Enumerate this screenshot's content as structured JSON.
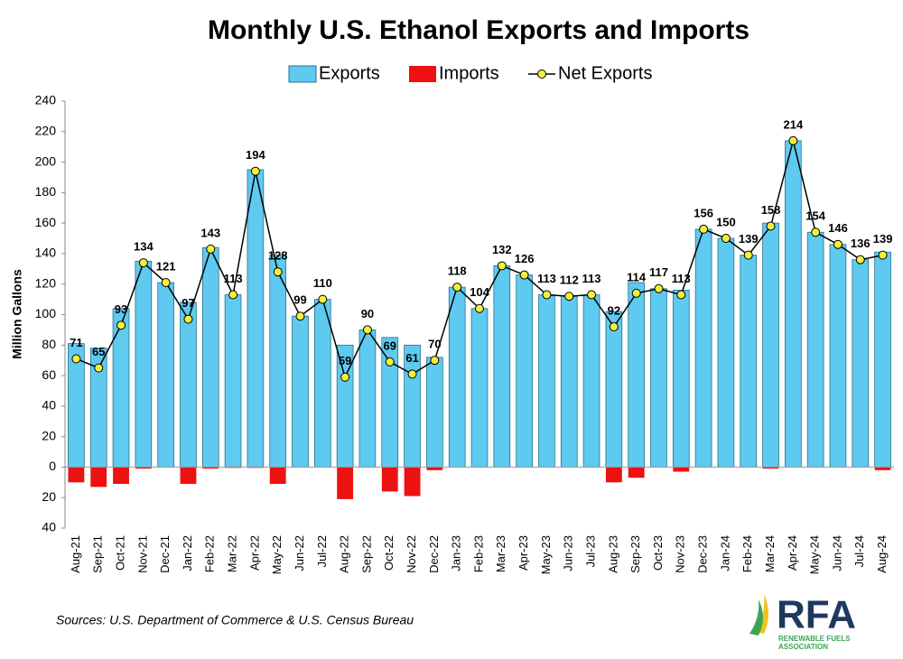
{
  "chart_data": {
    "type": "bar",
    "title": "Monthly U.S. Ethanol Exports and Imports",
    "y_label": "Million Gallons",
    "categories": [
      "Aug-21",
      "Sep-21",
      "Oct-21",
      "Nov-21",
      "Dec-21",
      "Jan-22",
      "Feb-22",
      "Mar-22",
      "Apr-22",
      "May-22",
      "Jun-22",
      "Jul-22",
      "Aug-22",
      "Sep-22",
      "Oct-22",
      "Nov-22",
      "Dec-22",
      "Jan-23",
      "Feb-23",
      "Mar-23",
      "Apr-23",
      "May-23",
      "Jun-23",
      "Jul-23",
      "Aug-23",
      "Sep-23",
      "Oct-23",
      "Nov-23",
      "Dec-23",
      "Jan-24",
      "Feb-24",
      "Mar-24",
      "Apr-24",
      "May-24",
      "Jun-24",
      "Jul-24",
      "Aug-24"
    ],
    "series": [
      {
        "name": "Exports",
        "type": "bar",
        "color": "#5ecaf0",
        "values": [
          81,
          78,
          104,
          135,
          121,
          108,
          144,
          113,
          195,
          139,
          99,
          110,
          80,
          90,
          85,
          80,
          72,
          118,
          104,
          132,
          126,
          113,
          112,
          113,
          102,
          121,
          117,
          116,
          156,
          150,
          139,
          160,
          214,
          154,
          146,
          136,
          141
        ]
      },
      {
        "name": "Imports",
        "type": "bar",
        "color": "#ee1111",
        "values": [
          -10,
          -13,
          -11,
          -1,
          0,
          -11,
          -1,
          -0.5,
          -0.5,
          -11,
          0,
          0,
          -21,
          0,
          -16,
          -19,
          -2,
          0,
          0,
          0,
          0,
          0,
          0,
          0,
          -10,
          -7,
          0,
          -3,
          0,
          0,
          0,
          -1,
          0,
          0,
          0,
          0,
          -2
        ]
      },
      {
        "name": "Net Exports",
        "type": "line",
        "color": "#000000",
        "marker_color": "#f5ef3c",
        "values": [
          71,
          65,
          93,
          134,
          121,
          97,
          143,
          113,
          194,
          128,
          99,
          110,
          59,
          90,
          69,
          61,
          70,
          118,
          104,
          132,
          126,
          113,
          112,
          113,
          92,
          114,
          117,
          113,
          156,
          150,
          139,
          158,
          214,
          154,
          146,
          136,
          139
        ]
      }
    ],
    "ylim": [
      -40,
      240
    ],
    "yticks": [
      {
        "value": -40,
        "label": "40"
      },
      {
        "value": -20,
        "label": "20"
      },
      0,
      20,
      40,
      60,
      80,
      100,
      120,
      140,
      160,
      180,
      200,
      220,
      240
    ],
    "legend": "top"
  },
  "source": "Sources: U.S. Department of Commerce & U.S. Census Bureau",
  "logo": {
    "name": "RFA",
    "subtitle": [
      "RENEWABLE FUELS",
      "ASSOCIATION"
    ]
  }
}
